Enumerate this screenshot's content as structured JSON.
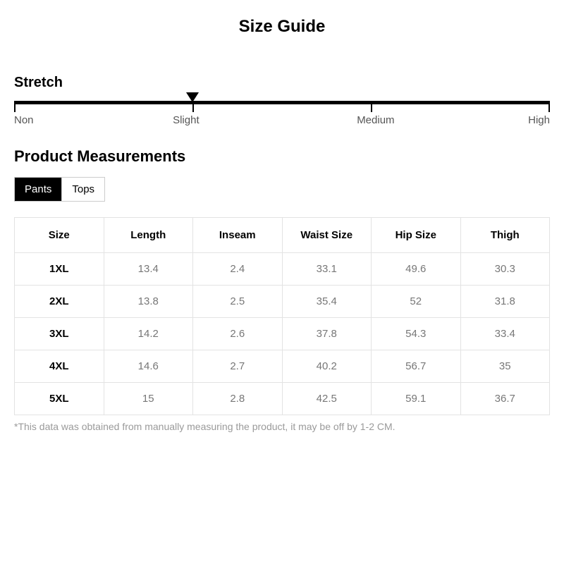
{
  "title": "Size Guide",
  "stretch": {
    "label": "Stretch",
    "options": [
      "Non",
      "Slight",
      "Medium",
      "High"
    ],
    "selected_index": 1,
    "tick_positions_pct": [
      0,
      33.3,
      66.6,
      100
    ],
    "track_color": "#000000",
    "label_color": "#555555"
  },
  "measurements": {
    "heading": "Product Measurements",
    "tabs": [
      {
        "label": "Pants",
        "active": true
      },
      {
        "label": "Tops",
        "active": false
      }
    ],
    "columns": [
      "Size",
      "Length",
      "Inseam",
      "Waist Size",
      "Hip Size",
      "Thigh"
    ],
    "rows": [
      [
        "1XL",
        "13.4",
        "2.4",
        "33.1",
        "49.6",
        "30.3"
      ],
      [
        "2XL",
        "13.8",
        "2.5",
        "35.4",
        "52",
        "31.8"
      ],
      [
        "3XL",
        "14.2",
        "2.6",
        "37.8",
        "54.3",
        "33.4"
      ],
      [
        "4XL",
        "14.6",
        "2.7",
        "40.2",
        "56.7",
        "35"
      ],
      [
        "5XL",
        "15",
        "2.8",
        "42.5",
        "59.1",
        "36.7"
      ]
    ],
    "border_color": "#e3e3e3",
    "header_text_color": "#000000",
    "cell_text_color": "#777777"
  },
  "footnote": "*This data was obtained from manually measuring the product, it may be off by 1-2 CM.",
  "colors": {
    "background": "#ffffff",
    "text": "#000000",
    "muted": "#9a9a9a",
    "tab_active_bg": "#000000",
    "tab_active_fg": "#ffffff",
    "tab_border": "#cccccc"
  },
  "typography": {
    "title_fontsize": 24,
    "section_label_fontsize": 20,
    "section_title_fontsize": 22,
    "table_fontsize": 15,
    "footnote_fontsize": 14
  }
}
